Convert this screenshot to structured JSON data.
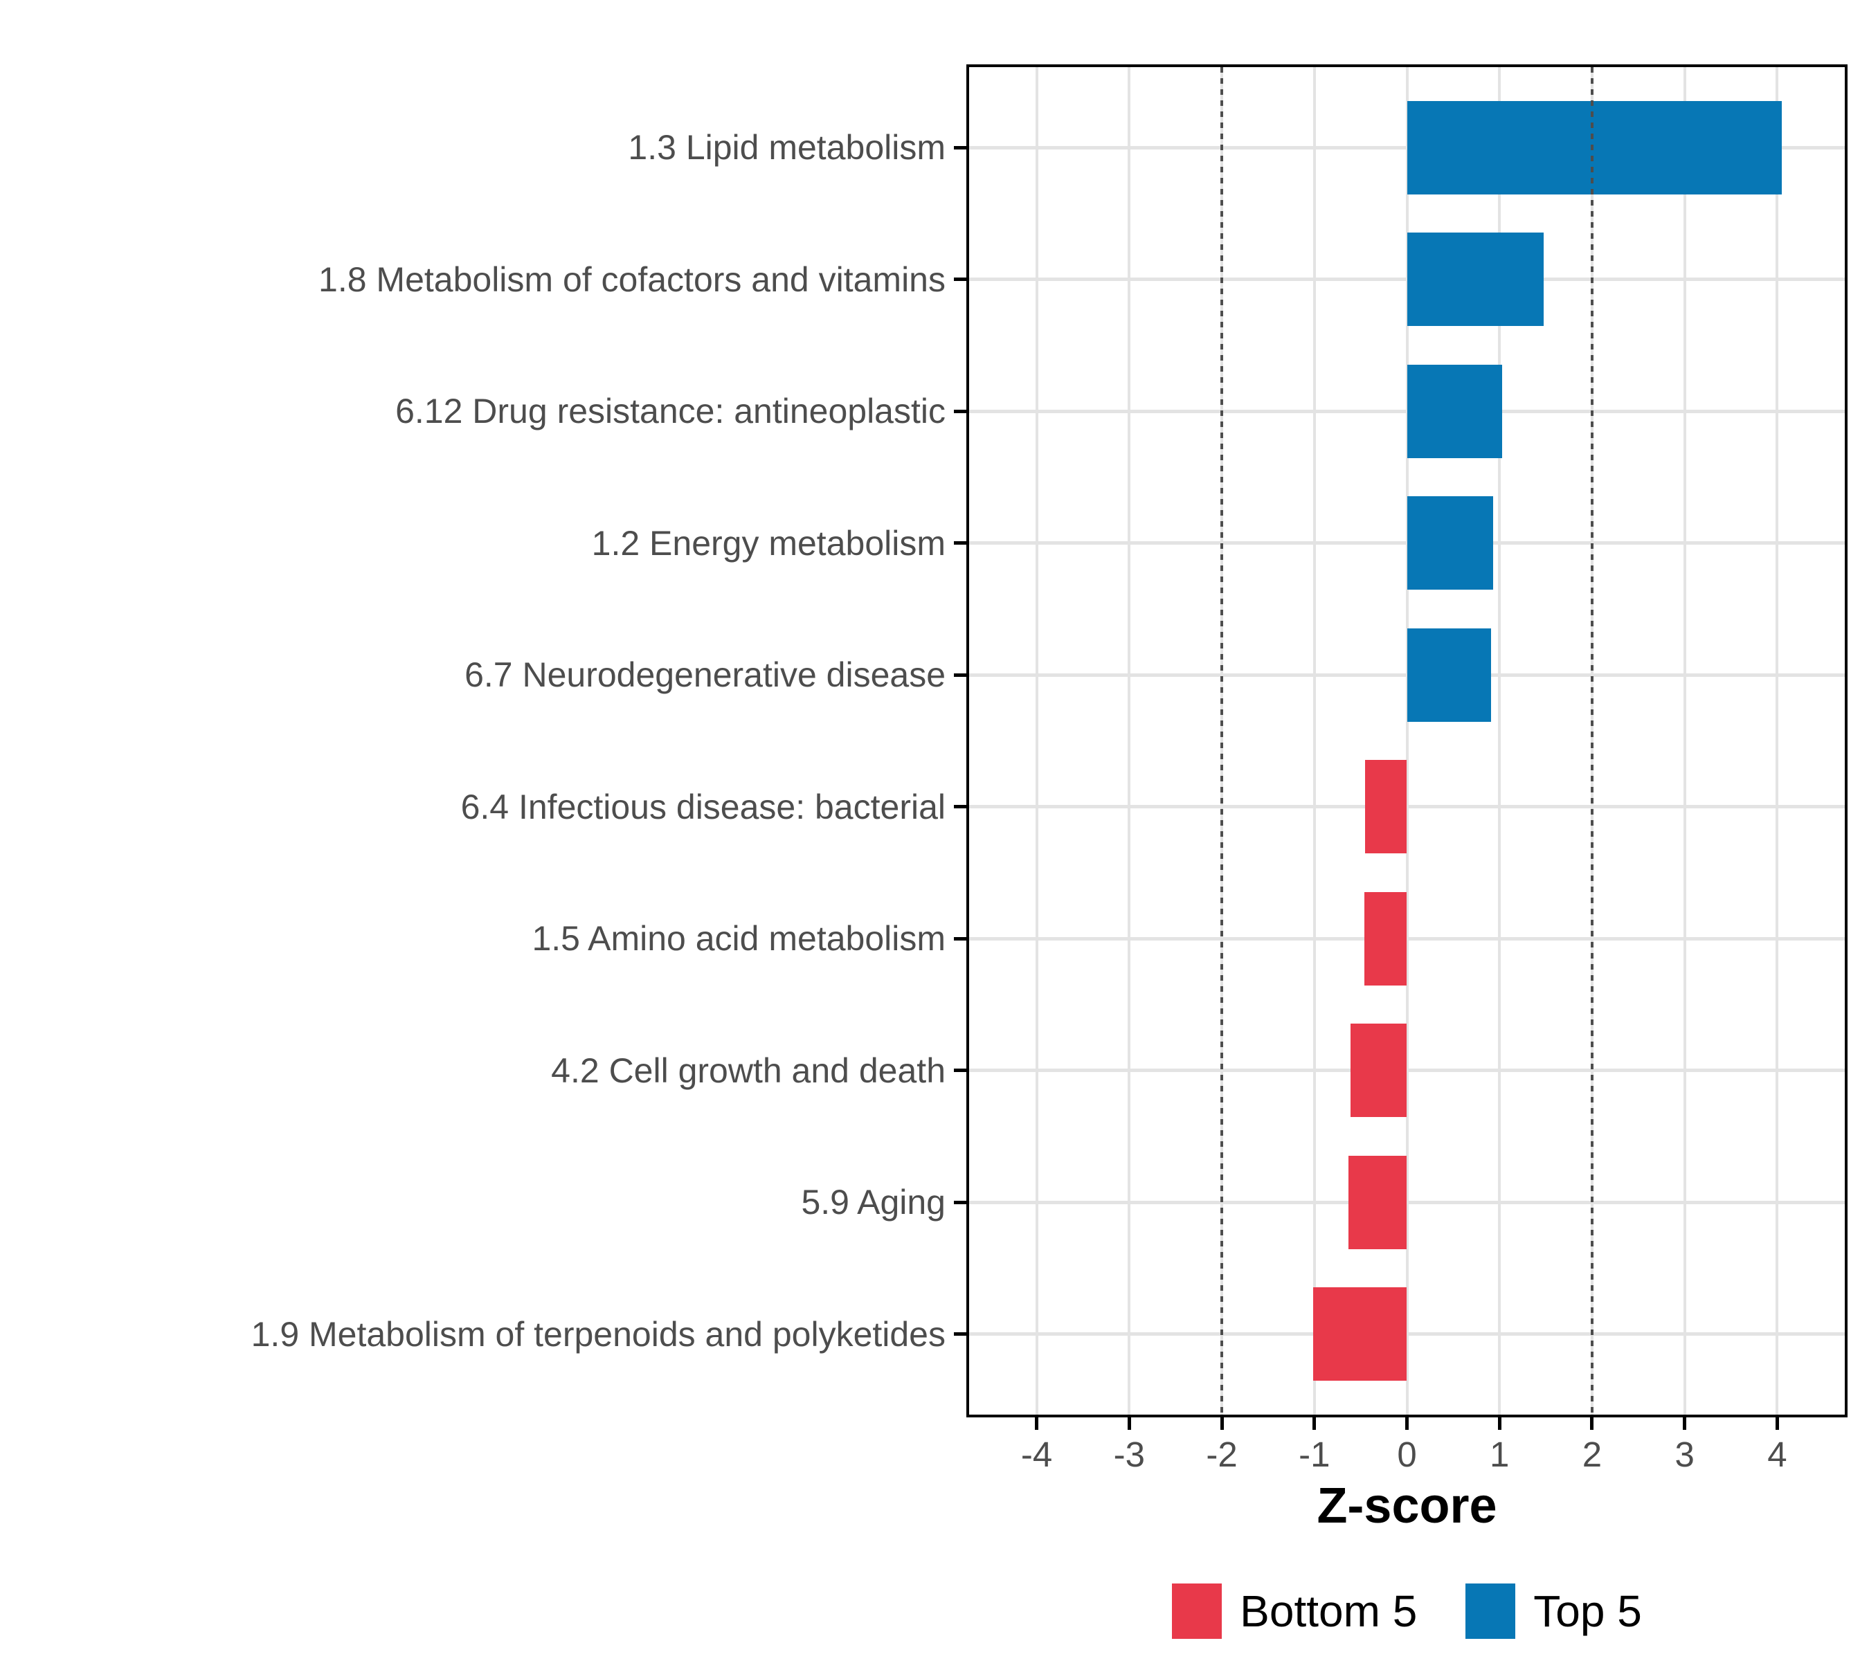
{
  "chart_data": {
    "type": "bar",
    "orientation": "horizontal",
    "title": "",
    "xlabel": "Z-score",
    "ylabel": "",
    "xlim": [
      -4.73,
      4.73
    ],
    "xticks": [
      -4,
      -3,
      -2,
      -1,
      0,
      1,
      2,
      3,
      4
    ],
    "grid": "major-only",
    "reference_lines": {
      "values": [
        -2,
        2
      ],
      "style": "dotted",
      "color": "#4d4d4d"
    },
    "categories": [
      "1.3 Lipid metabolism",
      "1.8 Metabolism of cofactors and vitamins",
      "6.12 Drug resistance: antineoplastic",
      "1.2 Energy metabolism",
      "6.7 Neurodegenerative disease",
      "6.4 Infectious disease: bacterial",
      "1.5 Amino acid metabolism",
      "4.2 Cell growth and death",
      "5.9 Aging",
      "1.9 Metabolism of terpenoids and polyketides"
    ],
    "values": [
      4.05,
      1.48,
      1.03,
      0.93,
      0.91,
      -0.45,
      -0.46,
      -0.61,
      -0.63,
      -1.01
    ],
    "groups": [
      "Top 5",
      "Top 5",
      "Top 5",
      "Top 5",
      "Top 5",
      "Bottom 5",
      "Bottom 5",
      "Bottom 5",
      "Bottom 5",
      "Bottom 5"
    ],
    "legend": {
      "position": "bottom",
      "entries": [
        {
          "label": "Bottom 5",
          "color": "#e8394a"
        },
        {
          "label": "Top 5",
          "color": "#0777b5"
        }
      ]
    },
    "colors": {
      "top5": "#0777b5",
      "bottom5": "#e8394a",
      "gridline": "#e3e3e3",
      "axis_text": "#4d4d4d",
      "panel_border": "#000000"
    }
  }
}
